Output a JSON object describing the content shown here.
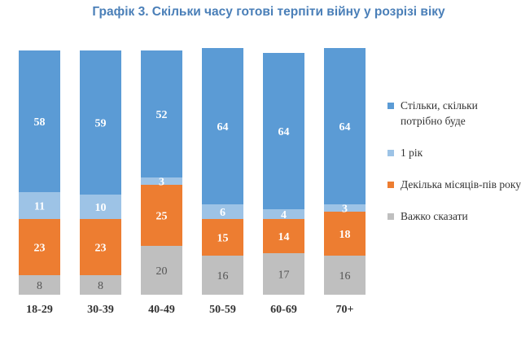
{
  "chart_data": {
    "type": "bar",
    "stacked": true,
    "title": "Графік 3. Скільки часу готові терпіти війну у розрізі віку",
    "categories": [
      "18-29",
      "30-39",
      "40-49",
      "50-59",
      "60-69",
      "70+"
    ],
    "series": [
      {
        "name": "Важко сказати",
        "color": "#bfbfbf",
        "label_color": "#555555",
        "values": [
          8,
          8,
          20,
          16,
          17,
          16
        ]
      },
      {
        "name": "Декілька місяців-пів року",
        "color": "#ed7d31",
        "label_color": "#ffffff",
        "values": [
          23,
          23,
          25,
          15,
          14,
          18
        ]
      },
      {
        "name": "1 рік",
        "color": "#9dc3e6",
        "label_color": "#ffffff",
        "values": [
          11,
          10,
          3,
          6,
          4,
          3
        ]
      },
      {
        "name": "Стільки, скільки потрібно буде",
        "color": "#5b9bd5",
        "label_color": "#ffffff",
        "values": [
          58,
          59,
          52,
          64,
          64,
          64
        ]
      }
    ],
    "legend_order": [
      3,
      2,
      1,
      0
    ],
    "legend_position": "right",
    "ylim": [
      0,
      100
    ],
    "grid": false
  }
}
